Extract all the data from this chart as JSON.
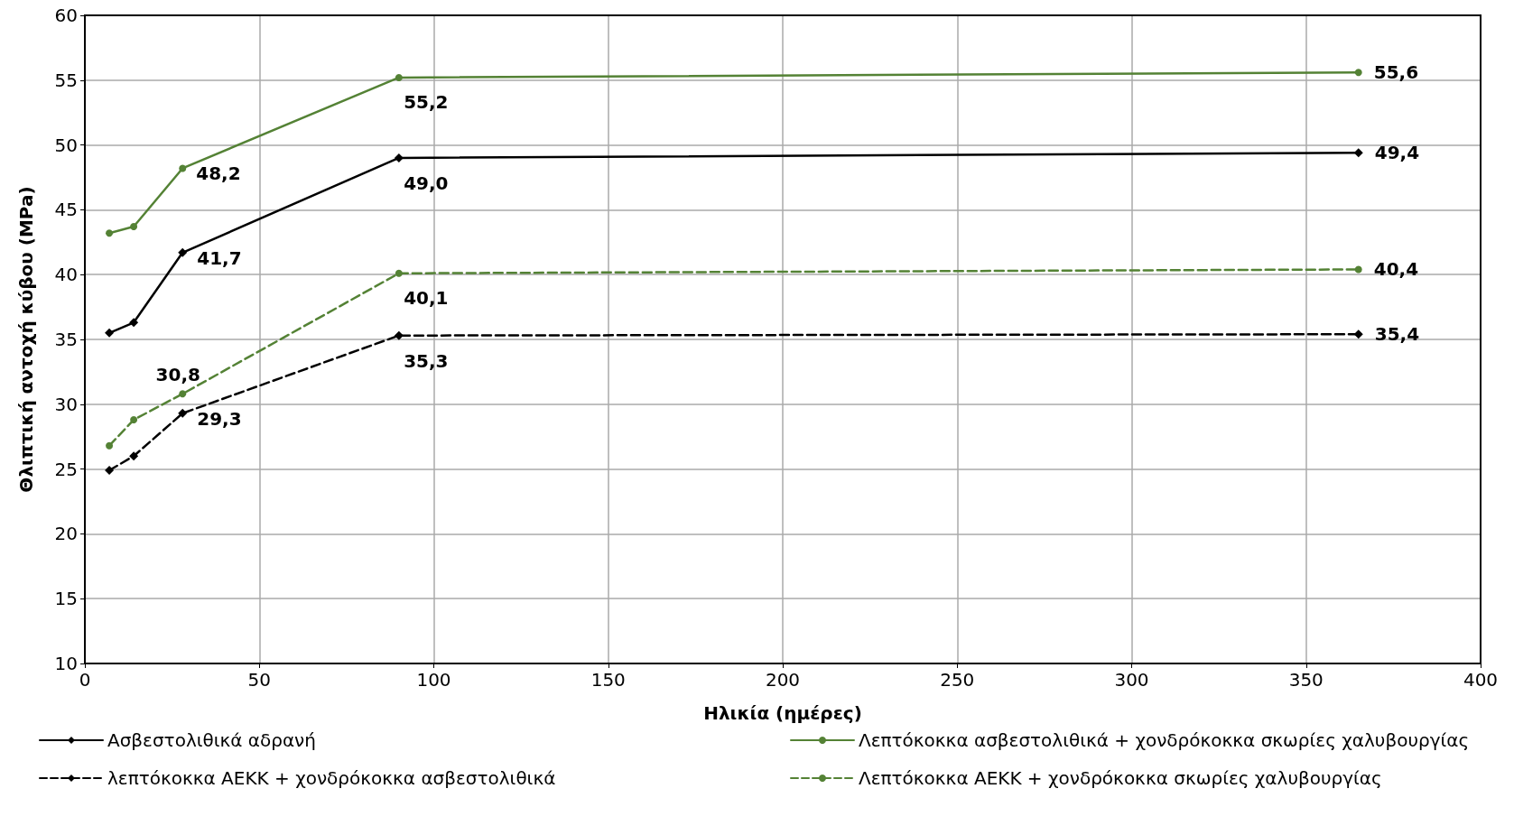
{
  "chart_data": {
    "type": "line",
    "xlabel": "Ηλικία (ημέρες)",
    "ylabel": "Θλιπτική αντοχή κύβου (MPa)",
    "x": [
      7,
      14,
      28,
      90,
      365
    ],
    "series": [
      {
        "name": "Ασβεστολιθικά αδρανή",
        "color": "#000000",
        "marker": "diamond",
        "line_style": "solid",
        "values": [
          35.5,
          36.3,
          41.7,
          49.0,
          49.4
        ],
        "value_labels": [
          null,
          null,
          "41,7",
          "49,0",
          "49,4"
        ]
      },
      {
        "name": "Λεπτόκοκκα ασβεστολιθικά + χονδρόκοκκα σκωρίες χαλυβουργίας",
        "color": "#548235",
        "marker": "circle",
        "line_style": "solid",
        "values": [
          43.2,
          43.7,
          48.2,
          55.2,
          55.6
        ],
        "value_labels": [
          null,
          null,
          "48,2",
          "55,2",
          "55,6"
        ]
      },
      {
        "name": "λεπτόκοκκα ΑΕΚΚ + χονδρόκοκκα ασβεστολιθικά",
        "color": "#000000",
        "marker": "diamond",
        "line_style": "dashed",
        "values": [
          24.9,
          26.0,
          29.3,
          35.3,
          35.4
        ],
        "value_labels": [
          null,
          null,
          "29,3",
          "35,3",
          "35,4"
        ]
      },
      {
        "name": "Λεπτόκοκκα ΑΕΚΚ + χονδρόκοκκα σκωρίες χαλυβουργίας",
        "color": "#548235",
        "marker": "circle",
        "line_style": "dashed",
        "values": [
          26.8,
          28.8,
          30.8,
          40.1,
          40.4
        ],
        "value_labels": [
          null,
          null,
          "30,8",
          "40,1",
          "40,4"
        ]
      }
    ],
    "xlim": [
      0,
      400
    ],
    "xticks": [
      0,
      50,
      100,
      150,
      200,
      250,
      300,
      350,
      400
    ],
    "ylim": [
      10,
      60
    ],
    "yticks": [
      10,
      15,
      20,
      25,
      30,
      35,
      40,
      45,
      50,
      55,
      60
    ],
    "grid": true,
    "legend": "bottom"
  }
}
